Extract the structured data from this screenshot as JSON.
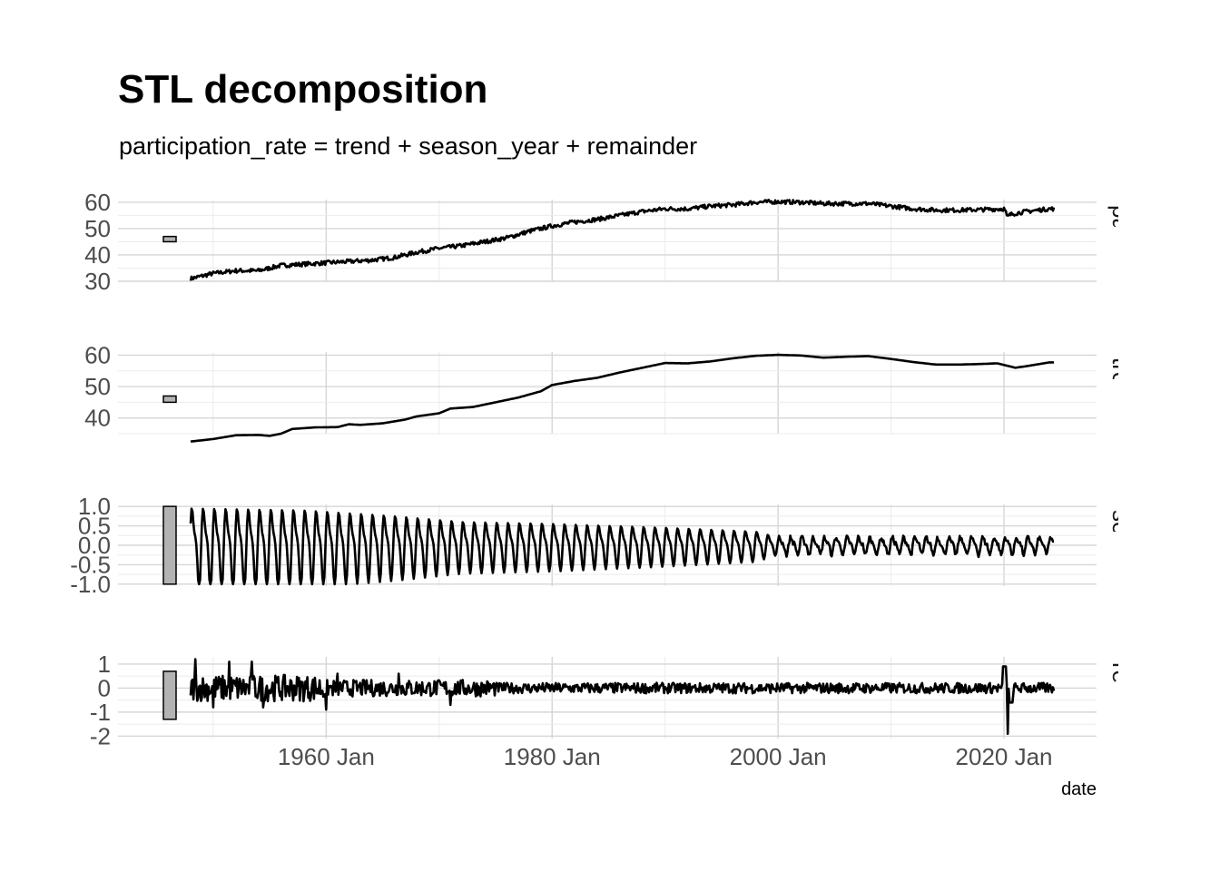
{
  "title": "STL decomposition",
  "subtitle": "participation_rate = trend + season_year + remainder",
  "chart_data": {
    "type": "line",
    "title": "STL decomposition",
    "subtitle": "participation_rate = trend + season_year + remainder",
    "xlabel": "date",
    "x_ticks": [
      "1960 Jan",
      "1980 Jan",
      "2000 Jan",
      "2020 Jan"
    ],
    "x_range": [
      "1948 Jan",
      "2024 Jan"
    ],
    "grid": true,
    "line_color": "#000000",
    "panels": [
      {
        "name": "particip",
        "ylim": [
          30,
          61
        ],
        "y_ticks": [
          "30",
          "40",
          "50",
          "60"
        ],
        "scale_bar": [
          45,
          47
        ],
        "series": [
          [
            "1948-01",
            31
          ],
          [
            "1950-01",
            33
          ],
          [
            "1952-01",
            34
          ],
          [
            "1954-01",
            34
          ],
          [
            "1956-01",
            36
          ],
          [
            "1958-01",
            36.5
          ],
          [
            "1960-01",
            37
          ],
          [
            "1962-01",
            37.5
          ],
          [
            "1964-01",
            38
          ],
          [
            "1966-01",
            39
          ],
          [
            "1968-01",
            41
          ],
          [
            "1970-01",
            42.5
          ],
          [
            "1972-01",
            43.5
          ],
          [
            "1974-01",
            45
          ],
          [
            "1976-01",
            46.5
          ],
          [
            "1978-01",
            49
          ],
          [
            "1980-01",
            51
          ],
          [
            "1982-01",
            52.5
          ],
          [
            "1984-01",
            53.5
          ],
          [
            "1986-01",
            55
          ],
          [
            "1988-01",
            56.5
          ],
          [
            "1990-01",
            57.5
          ],
          [
            "1992-01",
            57.5
          ],
          [
            "1994-01",
            58.5
          ],
          [
            "1996-01",
            59
          ],
          [
            "1998-01",
            60
          ],
          [
            "2000-01",
            60.2
          ],
          [
            "2002-01",
            60
          ],
          [
            "2004-01",
            59.5
          ],
          [
            "2006-01",
            59.5
          ],
          [
            "2008-01",
            59.5
          ],
          [
            "2010-01",
            58.5
          ],
          [
            "2012-01",
            57.5
          ],
          [
            "2014-01",
            57
          ],
          [
            "2016-01",
            57
          ],
          [
            "2018-01",
            57.2
          ],
          [
            "2020-01",
            57.5
          ],
          [
            "2020-05",
            55
          ],
          [
            "2021-01",
            55.8
          ],
          [
            "2022-01",
            56.5
          ],
          [
            "2024-01",
            57.5
          ]
        ]
      },
      {
        "name": "trend",
        "ylim": [
          35,
          61
        ],
        "y_ticks": [
          "40",
          "50",
          "60"
        ],
        "scale_bar": [
          45,
          47
        ],
        "series": [
          [
            "1948-01",
            32.5
          ],
          [
            "1950-01",
            33.3
          ],
          [
            "1952-01",
            34.5
          ],
          [
            "1954-01",
            34.6
          ],
          [
            "1955-01",
            34.3
          ],
          [
            "1956-01",
            35
          ],
          [
            "1957-01",
            36.5
          ],
          [
            "1959-01",
            37
          ],
          [
            "1961-01",
            37.1
          ],
          [
            "1962-01",
            38
          ],
          [
            "1963-01",
            37.8
          ],
          [
            "1965-01",
            38.3
          ],
          [
            "1967-01",
            39.5
          ],
          [
            "1968-01",
            40.5
          ],
          [
            "1970-01",
            41.5
          ],
          [
            "1971-01",
            43
          ],
          [
            "1973-01",
            43.5
          ],
          [
            "1975-01",
            45
          ],
          [
            "1977-01",
            46.5
          ],
          [
            "1979-01",
            48.5
          ],
          [
            "1980-01",
            50.5
          ],
          [
            "1982-01",
            51.8
          ],
          [
            "1984-01",
            52.8
          ],
          [
            "1986-01",
            54.5
          ],
          [
            "1988-01",
            56
          ],
          [
            "1990-01",
            57.5
          ],
          [
            "1992-01",
            57.4
          ],
          [
            "1994-01",
            58
          ],
          [
            "1996-01",
            59
          ],
          [
            "1998-01",
            59.8
          ],
          [
            "2000-01",
            60.1
          ],
          [
            "2002-01",
            59.9
          ],
          [
            "2004-01",
            59.2
          ],
          [
            "2006-01",
            59.5
          ],
          [
            "2008-01",
            59.7
          ],
          [
            "2010-01",
            58.8
          ],
          [
            "2012-01",
            57.8
          ],
          [
            "2014-01",
            57
          ],
          [
            "2016-01",
            57
          ],
          [
            "2018-01",
            57.2
          ],
          [
            "2019-06",
            57.4
          ],
          [
            "2021-01",
            56
          ],
          [
            "2022-01",
            56.5
          ],
          [
            "2024-01",
            57.7
          ]
        ]
      },
      {
        "name": "season",
        "ylim": [
          -1.05,
          1.05
        ],
        "y_ticks": [
          "-1.0",
          "-0.5",
          "0.0",
          "0.5",
          "1.0"
        ],
        "scale_bar": [
          -1.0,
          1.0
        ],
        "seasonal_amplitude": [
          [
            "1948",
            0.95
          ],
          [
            "1958",
            0.9
          ],
          [
            "1966",
            0.75
          ],
          [
            "1972",
            0.6
          ],
          [
            "1980",
            0.55
          ],
          [
            "1990",
            0.45
          ],
          [
            "1998",
            0.35
          ],
          [
            "2000",
            0.2
          ],
          [
            "2024",
            0.2
          ]
        ]
      },
      {
        "name": "remain",
        "ylim": [
          -2.1,
          1.3
        ],
        "y_ticks": [
          "-2",
          "-1",
          "0",
          "1"
        ],
        "scale_bar": [
          -1.3,
          0.7
        ],
        "extremes": [
          [
            "1948-06",
            1.2
          ],
          [
            "1950-01",
            -0.8
          ],
          [
            "1951-06",
            1.1
          ],
          [
            "1953-06",
            1.1
          ],
          [
            "1954-06",
            -0.8
          ],
          [
            "1960-01",
            -0.9
          ],
          [
            "1961-01",
            0.6
          ],
          [
            "1966-06",
            0.6
          ],
          [
            "1971-01",
            -0.7
          ],
          [
            "2020-02",
            1.2
          ],
          [
            "2020-05",
            -1.9
          ]
        ]
      }
    ]
  }
}
